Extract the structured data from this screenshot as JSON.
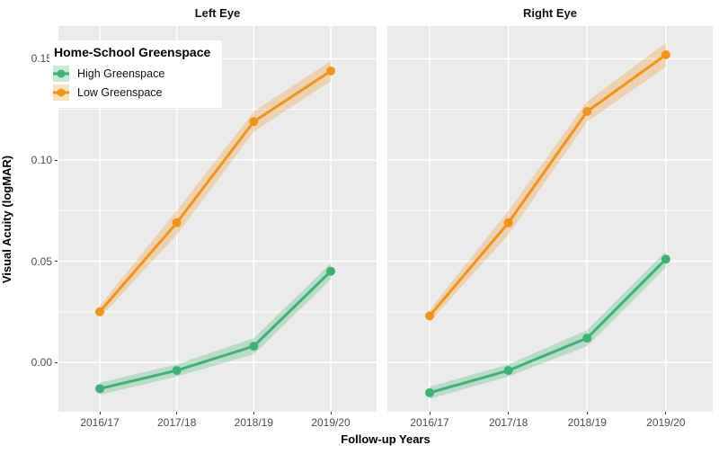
{
  "chart_data": {
    "type": "line",
    "title": "",
    "xlabel": "Follow-up Years",
    "ylabel": "Visual Acuity (logMAR)",
    "categories": [
      "2016/17",
      "2017/18",
      "2018/19",
      "2019/20"
    ],
    "y_ticks": [
      {
        "label": "0.00",
        "value": 0.0
      },
      {
        "label": "0.05",
        "value": 0.05
      },
      {
        "label": "0.10",
        "value": 0.1
      },
      {
        "label": "0.15",
        "value": 0.15
      }
    ],
    "y_minor": [
      0.025,
      0.075,
      0.125
    ],
    "ylim": [
      -0.0244,
      0.1662
    ],
    "grid": "on",
    "legend": {
      "title": "Home-School Greenspace",
      "position": "inside-top-left",
      "items": [
        {
          "label": "High Greenspace",
          "color": "#3EB274"
        },
        {
          "label": "Low Greenspace",
          "color": "#F2941C"
        }
      ]
    },
    "colors": {
      "high_greenspace": "#3EB274",
      "low_greenspace": "#F2941C",
      "panel_background": "#EBEBEB",
      "gridline": "#FFFFFF",
      "axis_text": "#4D4D4D",
      "ribbon_alpha": 0.28
    },
    "panels": [
      {
        "title": "Left Eye",
        "series": [
          {
            "name": "High Greenspace",
            "color": "#3EB274",
            "values": [
              -0.013,
              -0.004,
              0.008,
              0.045
            ],
            "lower": [
              -0.016,
              -0.007,
              0.004,
              0.041
            ],
            "upper": [
              -0.01,
              -0.001,
              0.012,
              0.049
            ]
          },
          {
            "name": "Low Greenspace",
            "color": "#F2941C",
            "values": [
              0.025,
              0.069,
              0.119,
              0.144
            ],
            "lower": [
              0.022,
              0.063,
              0.114,
              0.139
            ],
            "upper": [
              0.028,
              0.075,
              0.124,
              0.149
            ]
          }
        ]
      },
      {
        "title": "Right Eye",
        "series": [
          {
            "name": "High Greenspace",
            "color": "#3EB274",
            "values": [
              -0.015,
              -0.004,
              0.012,
              0.051
            ],
            "lower": [
              -0.018,
              -0.007,
              0.008,
              0.047
            ],
            "upper": [
              -0.012,
              -0.001,
              0.016,
              0.055
            ]
          },
          {
            "name": "Low Greenspace",
            "color": "#F2941C",
            "values": [
              0.023,
              0.069,
              0.124,
              0.152
            ],
            "lower": [
              0.02,
              0.063,
              0.119,
              0.146
            ],
            "upper": [
              0.026,
              0.075,
              0.129,
              0.158
            ]
          }
        ]
      }
    ]
  }
}
